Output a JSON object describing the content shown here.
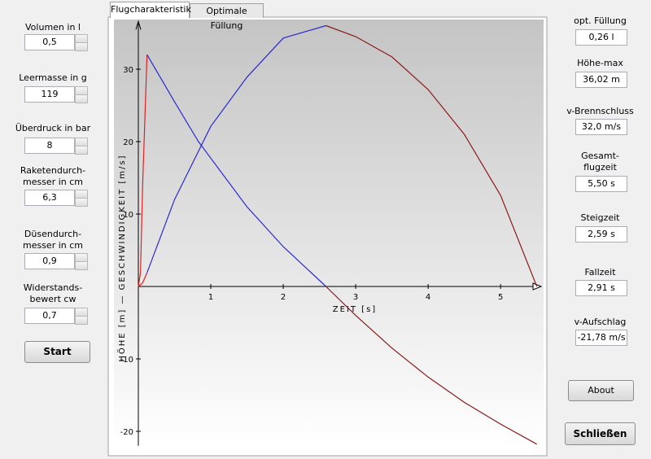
{
  "tabs": [
    "Flugcharakteristik",
    "Optimale Füllung"
  ],
  "inputs": [
    {
      "label": "Volumen in l",
      "value": "0,5"
    },
    {
      "label": "Leermasse in g",
      "value": "119"
    },
    {
      "label": "Überdruck in bar",
      "value": "8"
    },
    {
      "label": "Raketendurch-\nmesser in cm",
      "value": "6,3"
    },
    {
      "label": "Düsendurch-\nmesser in cm",
      "value": "0,9"
    },
    {
      "label": "Widerstands-\nbewert cw",
      "value": "0,7"
    }
  ],
  "start_button": "Start",
  "results": [
    {
      "label": "opt. Füllung",
      "value": "0,26 l"
    },
    {
      "label": "Höhe-max",
      "value": "36,02 m"
    },
    {
      "label": "v-Brennschluss",
      "value": "32,0 m/s"
    },
    {
      "label": "Gesamt-\nflugzeit",
      "value": "5,50 s"
    },
    {
      "label": "Steigzeit",
      "value": "2,59 s"
    },
    {
      "label": "Fallzeit",
      "value": "2,91 s"
    },
    {
      "label": "v-Aufschlag",
      "value": "-21,78 m/s"
    }
  ],
  "about_button": "About",
  "close_button": "Schließen",
  "chart": {
    "type": "line",
    "x_label": "ZEIT [s]",
    "y_label": "HÖHE [m]  —  GESCHWINDIGKEIT [m/s]",
    "xlim": [
      0,
      5.56
    ],
    "ylim": [
      -22,
      36.6
    ],
    "xticks": [
      1,
      2,
      3,
      4,
      5
    ],
    "yticks": [
      -20,
      -10,
      10,
      20,
      30
    ],
    "grid": false,
    "series": [
      {
        "color": "#e02020",
        "x": [
          0,
          0.03,
          0.06,
          0.12
        ],
        "values": [
          0,
          2,
          14,
          32
        ]
      },
      {
        "color": "#e02020",
        "x": [
          0,
          0.06,
          0.12
        ],
        "values": [
          0,
          0.5,
          1.9
        ]
      },
      {
        "color": "#2a2ad0",
        "x": [
          0.12,
          0.5,
          0.83,
          1.5,
          2,
          2.59
        ],
        "values": [
          32,
          25.5,
          20,
          11,
          5.5,
          0
        ]
      },
      {
        "color": "#2a2ad0",
        "x": [
          0.12,
          0.5,
          1,
          1.5,
          2,
          2.59
        ],
        "values": [
          1.9,
          12,
          22.1,
          28.9,
          34.3,
          36.02
        ]
      },
      {
        "color": "#8b1a1a",
        "x": [
          2.59,
          3,
          3.5,
          4,
          4.5,
          5,
          5.5
        ],
        "values": [
          0,
          -4,
          -8.5,
          -12.5,
          -16,
          -19,
          -21.78
        ]
      },
      {
        "color": "#8b1a1a",
        "x": [
          2.59,
          3,
          3.5,
          4,
          4.5,
          5,
          5.5
        ],
        "values": [
          36.02,
          34.5,
          31.7,
          27.2,
          21,
          12.6,
          0
        ]
      }
    ]
  }
}
